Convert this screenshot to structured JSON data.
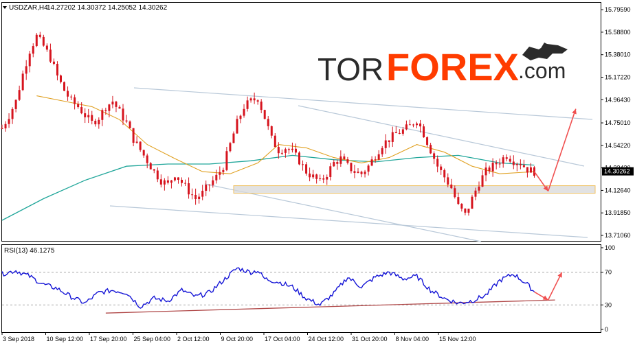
{
  "header": {
    "symbol_timeframe": "USDZAR,H4",
    "ohlc": "14.27202 14.30372 14.25052 14.30262",
    "rsi_label": "RSI(13) 46.1275"
  },
  "watermark": {
    "part1": "TOR",
    "part2": "FOREX",
    "part3": ".com",
    "color_dark": "#2b2b2b",
    "color_accent": "#ff3c00"
  },
  "colors": {
    "candle": "#d6141e",
    "ma_fast": "#e0a020",
    "ma_slow": "#20a69a",
    "rsi": "#1414d6",
    "trendline": "#b8c8d8",
    "rsi_support": "#b04848",
    "arrow": "#f05050",
    "zone_fill": "#d8d8d8",
    "zone_border": "#f0c060",
    "price_tag_bg": "#000000"
  },
  "chart_data": [
    {
      "type": "candlestick",
      "symbol": "USDZAR",
      "timeframe": "H4",
      "ylim": [
        13.66,
        15.86
      ],
      "y_ticks": [
        "15.79590",
        "15.58800",
        "15.38010",
        "15.17220",
        "14.96430",
        "14.75010",
        "14.54220",
        "14.33430",
        "14.12640",
        "13.91850",
        "13.71060"
      ],
      "current_price": "14.30262",
      "x_ticks": [
        "3 Sep 2018",
        "10 Sep 12:00",
        "17 Sep 20:00",
        "25 Sep 04:00",
        "2 Oct 12:00",
        "9 Oct 20:00",
        "17 Oct 04:00",
        "24 Oct 12:00",
        "31 Oct 20:00",
        "8 Nov 04:00",
        "15 Nov 12:00"
      ],
      "close_path": [
        [
          0,
          14.7
        ],
        [
          1,
          14.82
        ],
        [
          2,
          14.95
        ],
        [
          3,
          15.2
        ],
        [
          4,
          15.42
        ],
        [
          5,
          15.55
        ],
        [
          6,
          15.46
        ],
        [
          7,
          15.35
        ],
        [
          8,
          15.18
        ],
        [
          9,
          15.05
        ],
        [
          10,
          14.95
        ],
        [
          11,
          14.9
        ],
        [
          12,
          14.82
        ],
        [
          13,
          14.75
        ],
        [
          14,
          14.8
        ],
        [
          15,
          14.9
        ],
        [
          16,
          14.95
        ],
        [
          17,
          14.85
        ],
        [
          18,
          14.75
        ],
        [
          19,
          14.6
        ],
        [
          20,
          14.5
        ],
        [
          21,
          14.4
        ],
        [
          22,
          14.3
        ],
        [
          23,
          14.22
        ],
        [
          24,
          14.18
        ],
        [
          25,
          14.28
        ],
        [
          26,
          14.2
        ],
        [
          27,
          14.12
        ],
        [
          28,
          14.05
        ],
        [
          29,
          14.1
        ],
        [
          30,
          14.18
        ],
        [
          31,
          14.25
        ],
        [
          32,
          14.35
        ],
        [
          33,
          14.55
        ],
        [
          34,
          14.75
        ],
        [
          35,
          14.9
        ],
        [
          36,
          14.95
        ],
        [
          37,
          14.98
        ],
        [
          38,
          14.8
        ],
        [
          39,
          14.6
        ],
        [
          40,
          14.5
        ],
        [
          41,
          14.52
        ],
        [
          42,
          14.48
        ],
        [
          43,
          14.4
        ],
        [
          44,
          14.3
        ],
        [
          45,
          14.25
        ],
        [
          46,
          14.2
        ],
        [
          47,
          14.28
        ],
        [
          48,
          14.38
        ],
        [
          49,
          14.42
        ],
        [
          50,
          14.35
        ],
        [
          51,
          14.3
        ],
        [
          52,
          14.28
        ],
        [
          53,
          14.35
        ],
        [
          54,
          14.45
        ],
        [
          55,
          14.55
        ],
        [
          56,
          14.6
        ],
        [
          57,
          14.65
        ],
        [
          58,
          14.68
        ],
        [
          59,
          14.72
        ],
        [
          60,
          14.78
        ],
        [
          61,
          14.65
        ],
        [
          62,
          14.5
        ],
        [
          63,
          14.35
        ],
        [
          64,
          14.25
        ],
        [
          65,
          14.15
        ],
        [
          66,
          13.98
        ],
        [
          67,
          13.9
        ],
        [
          68,
          14.05
        ],
        [
          69,
          14.2
        ],
        [
          70,
          14.3
        ],
        [
          71,
          14.35
        ],
        [
          72,
          14.4
        ],
        [
          73,
          14.45
        ],
        [
          74,
          14.4
        ],
        [
          75,
          14.38
        ],
        [
          76,
          14.32
        ],
        [
          77,
          14.3
        ]
      ],
      "ma_fast_path": [
        [
          5,
          15.0
        ],
        [
          9,
          14.95
        ],
        [
          13,
          14.9
        ],
        [
          17,
          14.78
        ],
        [
          21,
          14.55
        ],
        [
          25,
          14.42
        ],
        [
          29,
          14.3
        ],
        [
          33,
          14.28
        ],
        [
          37,
          14.38
        ],
        [
          40,
          14.55
        ],
        [
          44,
          14.52
        ],
        [
          48,
          14.43
        ],
        [
          52,
          14.38
        ],
        [
          56,
          14.43
        ],
        [
          60,
          14.55
        ],
        [
          64,
          14.48
        ],
        [
          68,
          14.35
        ],
        [
          72,
          14.28
        ],
        [
          77,
          14.3
        ]
      ],
      "ma_slow_path": [
        [
          0,
          13.85
        ],
        [
          6,
          14.05
        ],
        [
          12,
          14.22
        ],
        [
          18,
          14.35
        ],
        [
          24,
          14.37
        ],
        [
          30,
          14.37
        ],
        [
          36,
          14.4
        ],
        [
          42,
          14.45
        ],
        [
          48,
          14.41
        ],
        [
          54,
          14.39
        ],
        [
          60,
          14.43
        ],
        [
          66,
          14.45
        ],
        [
          72,
          14.38
        ],
        [
          77,
          14.36
        ]
      ],
      "support_zone": [
        14.1,
        14.17
      ],
      "projection_arrows": [
        [
          [
            77,
            14.3
          ],
          [
            79,
            14.12
          ]
        ],
        [
          [
            79,
            14.12
          ],
          [
            83,
            14.88
          ]
        ]
      ]
    },
    {
      "type": "line",
      "indicator": "RSI(13)",
      "value": "46.1275",
      "ylim": [
        0,
        100
      ],
      "y_ticks": [
        "100",
        "70",
        "30",
        "0"
      ],
      "levels": [
        70,
        30
      ],
      "path": [
        [
          0,
          68
        ],
        [
          2,
          72
        ],
        [
          4,
          65
        ],
        [
          6,
          55
        ],
        [
          8,
          50
        ],
        [
          10,
          40
        ],
        [
          12,
          32
        ],
        [
          14,
          45
        ],
        [
          16,
          48
        ],
        [
          18,
          45
        ],
        [
          20,
          28
        ],
        [
          22,
          38
        ],
        [
          24,
          35
        ],
        [
          26,
          48
        ],
        [
          28,
          40
        ],
        [
          30,
          45
        ],
        [
          32,
          60
        ],
        [
          34,
          75
        ],
        [
          36,
          70
        ],
        [
          37,
          72
        ],
        [
          38,
          62
        ],
        [
          40,
          58
        ],
        [
          42,
          52
        ],
        [
          44,
          38
        ],
        [
          46,
          30
        ],
        [
          48,
          44
        ],
        [
          50,
          64
        ],
        [
          52,
          52
        ],
        [
          54,
          64
        ],
        [
          56,
          70
        ],
        [
          58,
          62
        ],
        [
          60,
          65
        ],
        [
          62,
          48
        ],
        [
          64,
          38
        ],
        [
          66,
          32
        ],
        [
          68,
          35
        ],
        [
          70,
          42
        ],
        [
          72,
          60
        ],
        [
          74,
          68
        ],
        [
          76,
          55
        ],
        [
          77,
          46
        ]
      ],
      "support_line": [
        [
          15,
          20
        ],
        [
          80,
          36
        ]
      ],
      "projection_arrows": [
        [
          [
            77,
            46
          ],
          [
            79,
            36
          ]
        ],
        [
          [
            79,
            36
          ],
          [
            81,
            70
          ]
        ]
      ]
    }
  ]
}
